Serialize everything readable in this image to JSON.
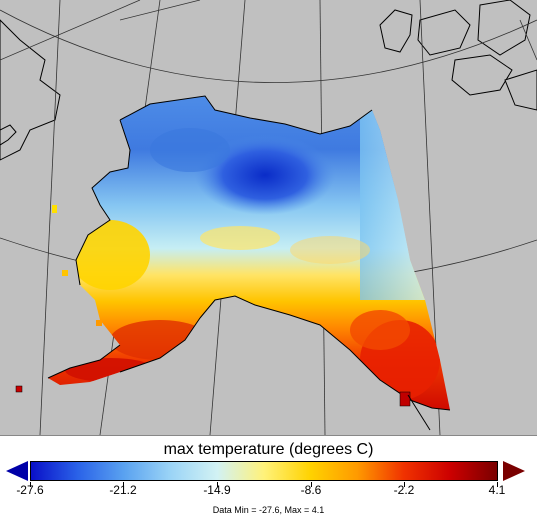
{
  "legend": {
    "title": "max temperature (degrees C)",
    "ticks": [
      "-27.6",
      "-21.2",
      "-14.9",
      "-8.6",
      "-2.2",
      "4.1"
    ],
    "min": -27.6,
    "max": 4.1,
    "low_arrow_color": "#0000a8",
    "high_arrow_color": "#7a0000",
    "gradient_stops": [
      "#0a10c8",
      "#2a62e8",
      "#5aa2f0",
      "#9bd4f6",
      "#d2f2f4",
      "#fff27a",
      "#ffd200",
      "#ff9a00",
      "#f03200",
      "#cc0000",
      "#7a0000"
    ]
  },
  "footer": {
    "data_range": "Data Min = -27.6, Max = 4.1"
  },
  "map": {
    "background_color": "#c0c0c0",
    "coastline_color": "#000000",
    "graticule_color": "#333333",
    "icons": [
      "coastline-map",
      "graticule-lines",
      "temperature-field"
    ]
  }
}
